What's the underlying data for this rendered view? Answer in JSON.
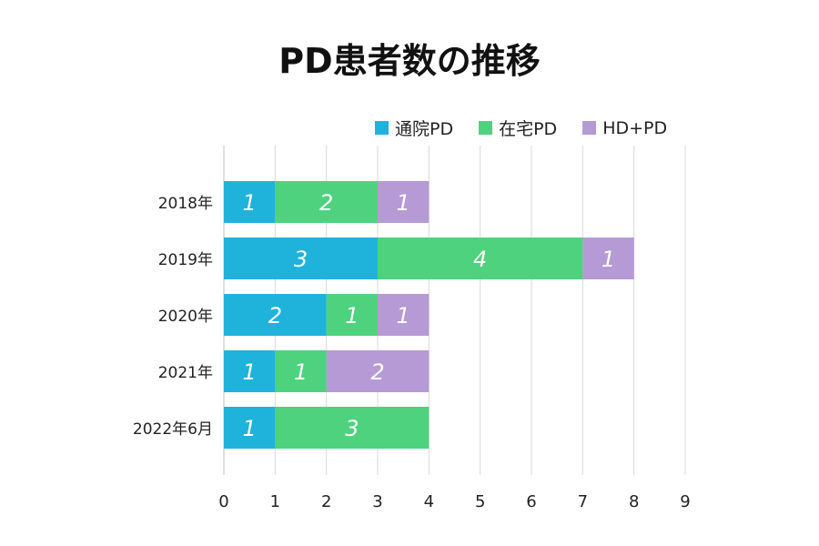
{
  "title": "PD患者数の推移",
  "chart_data": {
    "type": "bar",
    "orientation": "horizontal",
    "stacked": true,
    "title": "PD患者数の推移",
    "categories": [
      "2018年",
      "2019年",
      "2020年",
      "2021年",
      "2022年6月"
    ],
    "series": [
      {
        "name": "通院PD",
        "color": "#1fb3dc",
        "values": [
          1,
          3,
          2,
          1,
          1
        ]
      },
      {
        "name": "在宅PD",
        "color": "#4fd27e",
        "values": [
          2,
          4,
          1,
          1,
          3
        ]
      },
      {
        "name": "HD+PD",
        "color": "#b59ad6",
        "values": [
          1,
          1,
          1,
          2,
          0
        ]
      }
    ],
    "xlim": [
      0,
      9
    ],
    "xticks": [
      "0",
      "1",
      "2",
      "3",
      "4",
      "5",
      "6",
      "7",
      "8",
      "9"
    ],
    "grid": true,
    "legend_position": "top-right",
    "data_labels": true,
    "xlabel": "",
    "ylabel": ""
  }
}
